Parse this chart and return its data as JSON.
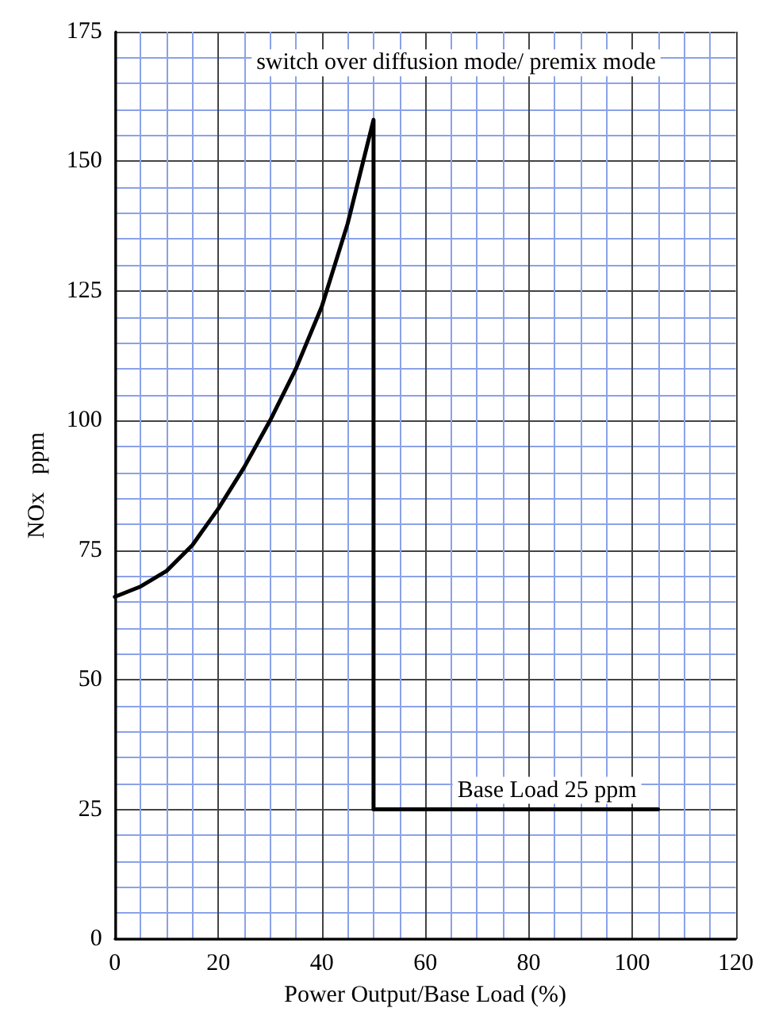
{
  "chart_data": {
    "type": "line",
    "xlabel": "Power Output/Base Load (%)",
    "ylabel": "NOx   ppm",
    "x": [
      0,
      5,
      10,
      15,
      20,
      25,
      30,
      35,
      40,
      45,
      48,
      50,
      50,
      105
    ],
    "series": [
      {
        "color": "#000000",
        "values": [
          66,
          68,
          71,
          76,
          83,
          91,
          100,
          110,
          122,
          138,
          150,
          158,
          25,
          25
        ]
      }
    ],
    "xlim": [
      0,
      120
    ],
    "xticks": [
      0,
      {
        "value": 5,
        "label": null
      },
      {
        "value": 10,
        "label": null
      },
      {
        "value": 15,
        "label": null
      },
      20,
      {
        "value": 25,
        "label": null
      },
      {
        "value": 30,
        "label": null
      },
      {
        "value": 35,
        "label": null
      },
      40,
      {
        "value": 45,
        "label": null
      },
      {
        "value": 50,
        "label": null
      },
      {
        "value": 55,
        "label": null
      },
      60,
      {
        "value": 65,
        "label": null
      },
      {
        "value": 70,
        "label": null
      },
      {
        "value": 75,
        "label": null
      },
      80,
      {
        "value": 85,
        "label": null
      },
      {
        "value": 90,
        "label": null
      },
      {
        "value": 95,
        "label": null
      },
      100,
      {
        "value": 105,
        "label": null
      },
      {
        "value": 110,
        "label": null
      },
      {
        "value": 115,
        "label": null
      },
      120
    ],
    "ylim": [
      0,
      175
    ],
    "yticks": [
      0,
      {
        "value": 5,
        "label": null
      },
      {
        "value": 10,
        "label": null
      },
      {
        "value": 15,
        "label": null
      },
      {
        "value": 20,
        "label": null
      },
      25,
      {
        "value": 30,
        "label": null
      },
      {
        "value": 35,
        "label": null
      },
      {
        "value": 40,
        "label": null
      },
      {
        "value": 45,
        "label": null
      },
      50,
      {
        "value": 55,
        "label": null
      },
      {
        "value": 60,
        "label": null
      },
      {
        "value": 65,
        "label": null
      },
      {
        "value": 70,
        "label": null
      },
      75,
      {
        "value": 80,
        "label": null
      },
      {
        "value": 85,
        "label": null
      },
      {
        "value": 90,
        "label": null
      },
      {
        "value": 95,
        "label": null
      },
      100,
      {
        "value": 105,
        "label": null
      },
      {
        "value": 110,
        "label": null
      },
      {
        "value": 115,
        "label": null
      },
      {
        "value": 120,
        "label": null
      },
      125,
      {
        "value": 130,
        "label": null
      },
      {
        "value": 135,
        "label": null
      },
      {
        "value": 140,
        "label": null
      },
      {
        "value": 145,
        "label": null
      },
      150,
      {
        "value": 155,
        "label": null
      },
      {
        "value": 160,
        "label": null
      },
      {
        "value": 165,
        "label": null
      },
      {
        "value": 170,
        "label": null
      },
      175
    ],
    "grid": true,
    "marker": "none",
    "line_style": "solid",
    "annotations": [
      {
        "text": "switch over diffusion mode/ premix mode",
        "x": 50,
        "y": 158
      },
      {
        "text": "Base Load 25 ppm",
        "x": 105,
        "y": 25
      }
    ]
  }
}
